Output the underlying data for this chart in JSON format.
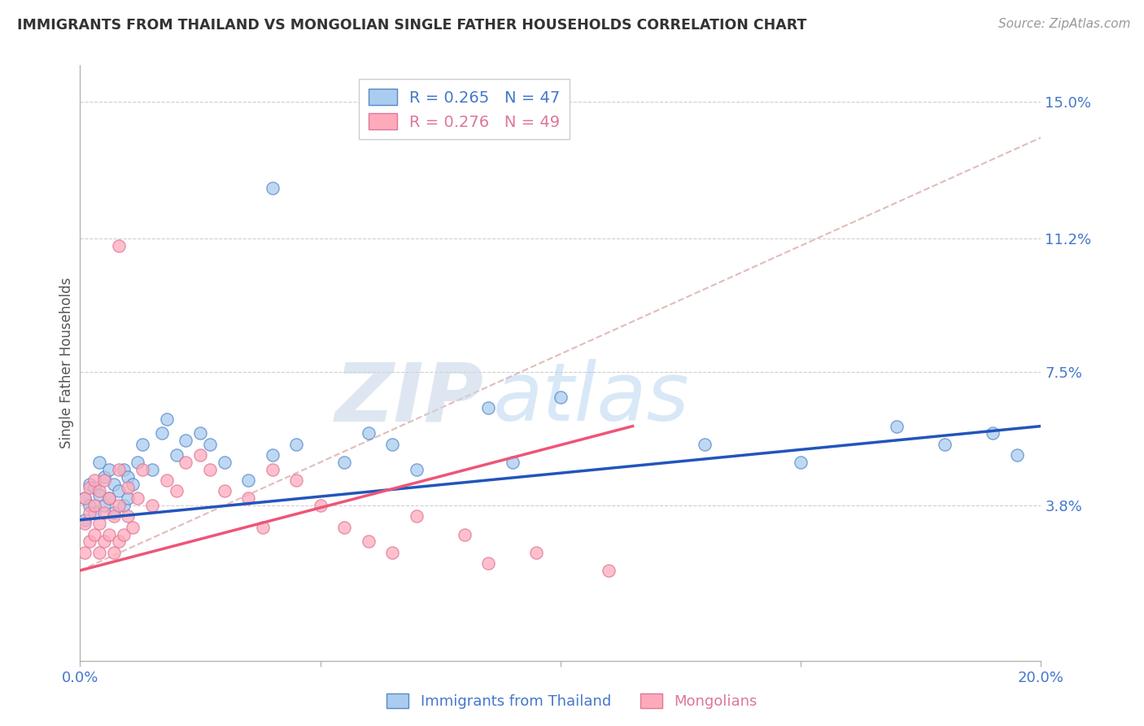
{
  "title": "IMMIGRANTS FROM THAILAND VS MONGOLIAN SINGLE FATHER HOUSEHOLDS CORRELATION CHART",
  "source_text": "Source: ZipAtlas.com",
  "ylabel": "Single Father Households",
  "watermark_zip": "ZIP",
  "watermark_atlas": "atlas",
  "legend_blue_r": "R = 0.265",
  "legend_blue_n": "N = 47",
  "legend_pink_r": "R = 0.276",
  "legend_pink_n": "N = 49",
  "xmin": 0.0,
  "xmax": 0.2,
  "ymin": -0.005,
  "ymax": 0.16,
  "yticks": [
    0.038,
    0.075,
    0.112,
    0.15
  ],
  "ytick_labels": [
    "3.8%",
    "7.5%",
    "11.2%",
    "15.0%"
  ],
  "blue_color": "#AACCEE",
  "blue_edge_color": "#5588CC",
  "pink_color": "#FFAABB",
  "pink_edge_color": "#DD7799",
  "blue_line_color": "#2255BB",
  "pink_line_color": "#EE5577",
  "pink_dash_color": "#DDAAAA",
  "grid_color": "#BBBBBB",
  "background_color": "#FFFFFF",
  "title_color": "#333333",
  "right_axis_color": "#4477CC",
  "blue_scatter_x": [
    0.001,
    0.001,
    0.002,
    0.002,
    0.003,
    0.003,
    0.004,
    0.004,
    0.005,
    0.005,
    0.006,
    0.006,
    0.007,
    0.007,
    0.008,
    0.009,
    0.009,
    0.01,
    0.01,
    0.011,
    0.012,
    0.013,
    0.015,
    0.017,
    0.018,
    0.02,
    0.022,
    0.025,
    0.027,
    0.03,
    0.035,
    0.04,
    0.045,
    0.055,
    0.06,
    0.065,
    0.07,
    0.085,
    0.09,
    0.1,
    0.13,
    0.15,
    0.17,
    0.18,
    0.19,
    0.195,
    0.04
  ],
  "blue_scatter_y": [
    0.034,
    0.04,
    0.038,
    0.044,
    0.036,
    0.043,
    0.041,
    0.05,
    0.038,
    0.046,
    0.04,
    0.048,
    0.036,
    0.044,
    0.042,
    0.038,
    0.048,
    0.04,
    0.046,
    0.044,
    0.05,
    0.055,
    0.048,
    0.058,
    0.062,
    0.052,
    0.056,
    0.058,
    0.055,
    0.05,
    0.045,
    0.052,
    0.055,
    0.05,
    0.058,
    0.055,
    0.048,
    0.065,
    0.05,
    0.068,
    0.055,
    0.05,
    0.06,
    0.055,
    0.058,
    0.052,
    0.126
  ],
  "pink_scatter_x": [
    0.001,
    0.001,
    0.001,
    0.002,
    0.002,
    0.002,
    0.003,
    0.003,
    0.003,
    0.004,
    0.004,
    0.004,
    0.005,
    0.005,
    0.005,
    0.006,
    0.006,
    0.007,
    0.007,
    0.008,
    0.008,
    0.008,
    0.009,
    0.01,
    0.01,
    0.011,
    0.012,
    0.013,
    0.015,
    0.018,
    0.02,
    0.022,
    0.025,
    0.027,
    0.03,
    0.035,
    0.038,
    0.04,
    0.045,
    0.05,
    0.055,
    0.06,
    0.065,
    0.07,
    0.08,
    0.085,
    0.095,
    0.11,
    0.008
  ],
  "pink_scatter_y": [
    0.025,
    0.033,
    0.04,
    0.028,
    0.036,
    0.043,
    0.03,
    0.038,
    0.045,
    0.025,
    0.033,
    0.042,
    0.028,
    0.036,
    0.045,
    0.03,
    0.04,
    0.025,
    0.035,
    0.028,
    0.038,
    0.048,
    0.03,
    0.035,
    0.043,
    0.032,
    0.04,
    0.048,
    0.038,
    0.045,
    0.042,
    0.05,
    0.052,
    0.048,
    0.042,
    0.04,
    0.032,
    0.048,
    0.045,
    0.038,
    0.032,
    0.028,
    0.025,
    0.035,
    0.03,
    0.022,
    0.025,
    0.02,
    0.11
  ],
  "blue_trend": [
    0.0,
    0.2,
    0.034,
    0.06
  ],
  "pink_trend_solid": [
    0.0,
    0.115,
    0.02,
    0.06
  ],
  "pink_trend_dash": [
    0.0,
    0.2,
    0.02,
    0.14
  ]
}
